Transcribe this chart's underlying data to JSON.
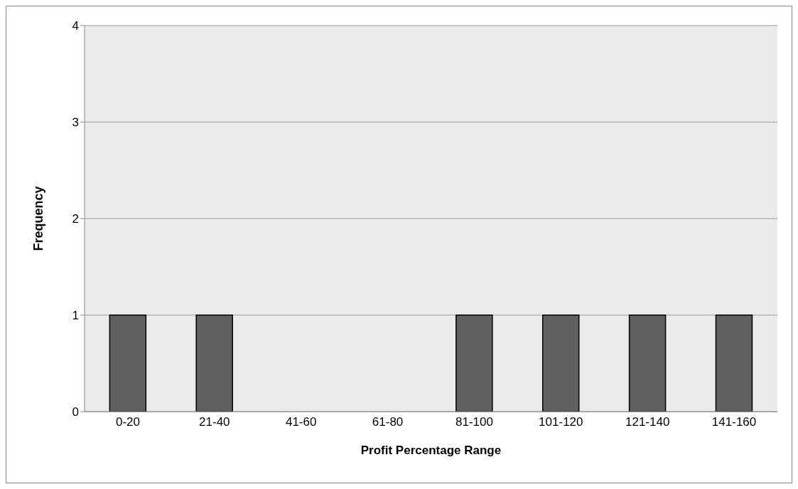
{
  "chart_data": {
    "type": "bar",
    "xlabel": "Profit Percentage Range",
    "ylabel": "Frequency",
    "categories": [
      "0-20",
      "21-40",
      "41-60",
      "61-80",
      "81-100",
      "101-120",
      "121-140",
      "141-160"
    ],
    "values": [
      1,
      1,
      0,
      0,
      1,
      1,
      1,
      1
    ],
    "color": "#606060",
    "ylim": [
      0,
      4
    ],
    "yticks": [
      0,
      1,
      2,
      3,
      4
    ],
    "grid": "y",
    "legend": false
  }
}
